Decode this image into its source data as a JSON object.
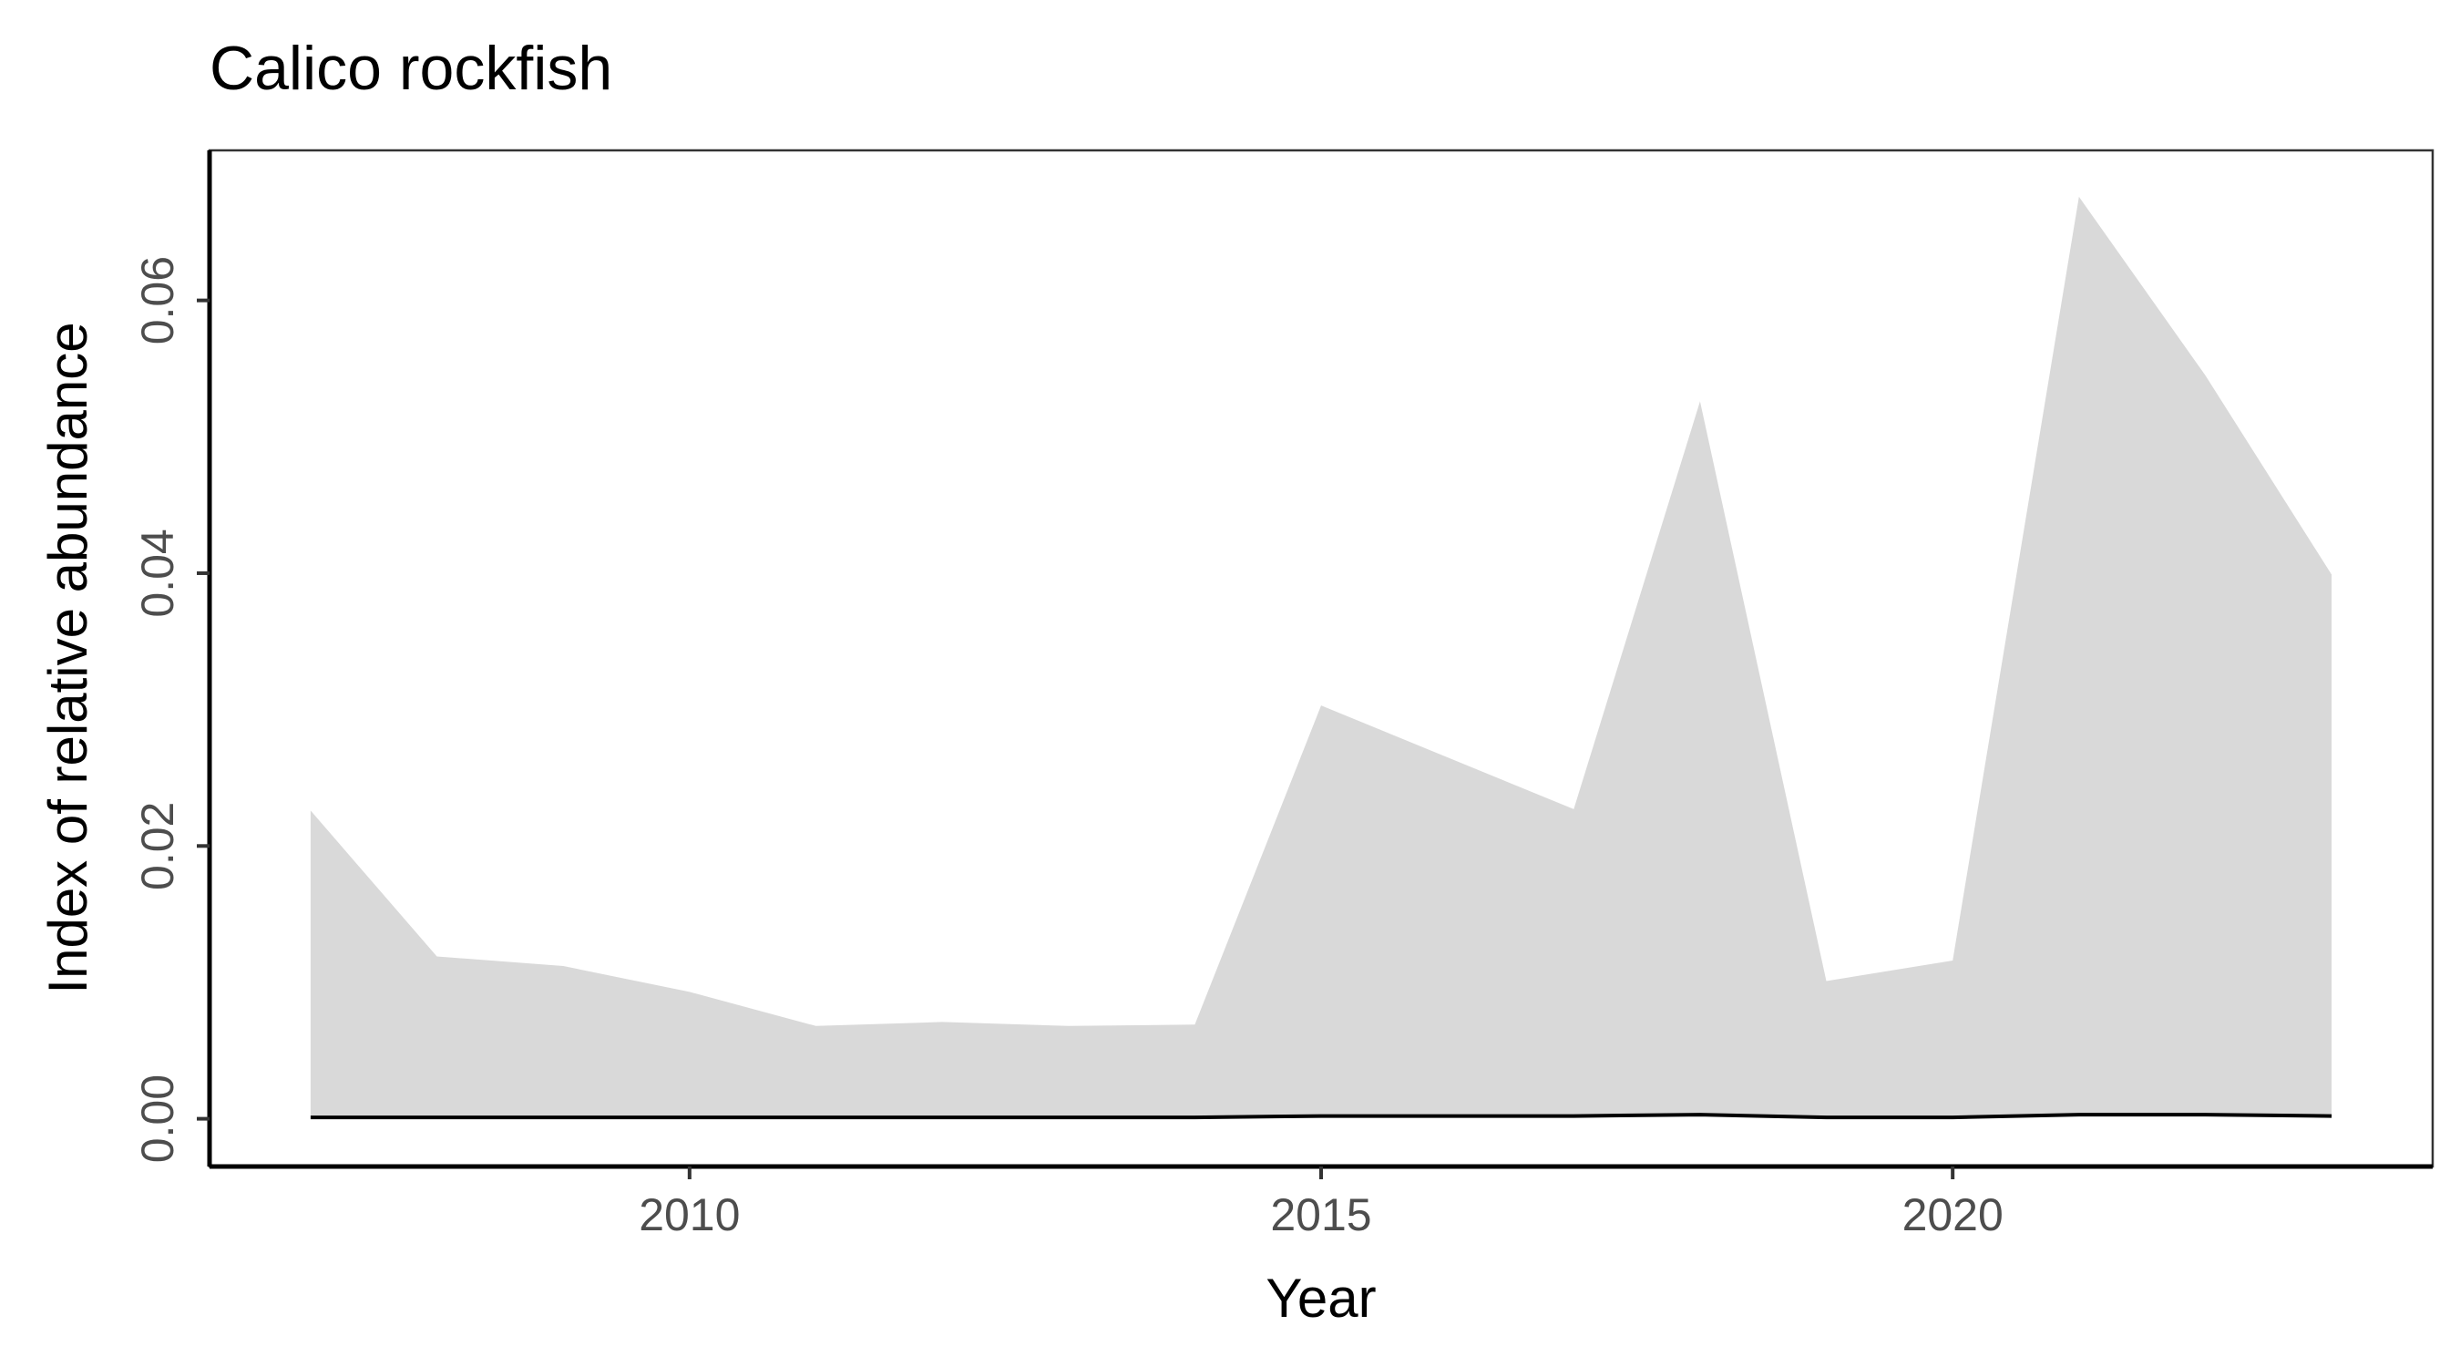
{
  "chart_data": {
    "type": "area",
    "title": "Calico rockfish",
    "xlabel": "Year",
    "ylabel": "Index of relative abundance",
    "xlim": [
      2006.2,
      2023.8
    ],
    "ylim": [
      -0.0035,
      0.071
    ],
    "x_ticks": [
      2010,
      2015,
      2020
    ],
    "x_tick_labels": [
      "2010",
      "2015",
      "2020"
    ],
    "y_ticks": [
      0,
      0.02,
      0.04,
      0.06
    ],
    "y_tick_labels": [
      "0.00",
      "0.02",
      "0.04",
      "0.06"
    ],
    "grid": false,
    "legend": "none",
    "x": [
      2007,
      2008,
      2009,
      2010,
      2011,
      2012,
      2013,
      2014,
      2015,
      2016,
      2017,
      2018,
      2019,
      2020,
      2021,
      2022,
      2023
    ],
    "series": [
      {
        "role": "upper_band",
        "values": [
          0.0226,
          0.0119,
          0.0112,
          0.0093,
          0.0068,
          0.0071,
          0.0068,
          0.0069,
          0.0303,
          0.0265,
          0.0227,
          0.0526,
          0.0101,
          0.0116,
          0.0676,
          0.0545,
          0.0399
        ],
        "color": "#d9d9d9"
      },
      {
        "role": "line",
        "values": [
          0.0001,
          0.0001,
          0.0001,
          0.0001,
          0.0001,
          0.0001,
          0.0001,
          0.0001,
          0.0002,
          0.0002,
          0.0002,
          0.0003,
          0.0001,
          0.0001,
          0.0003,
          0.0003,
          0.0002
        ],
        "color": "#000000"
      }
    ]
  }
}
